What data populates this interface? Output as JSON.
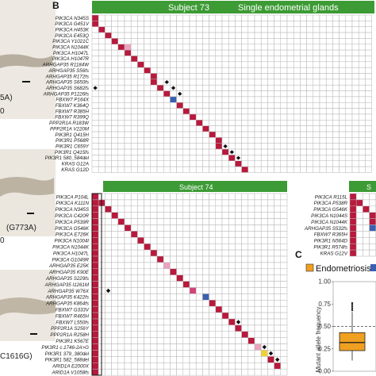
{
  "panel_b": {
    "letter": "B",
    "subject73": {
      "header_left": "Subject 73",
      "header_right": "Single endometrial glands",
      "genes": [
        "PIK3CA N345S",
        "PIK3CA G451V",
        "PIK3CA H453K",
        "PIK3CA E453Q",
        "PIK3CA Y1021C",
        "PIK3CA N1044K",
        "PIK3CA H1047L",
        "PIK3CA H1047R",
        "ARHGAP35 R1184W",
        "ARHGAP35 S56fs",
        "ARHGAP35 R172fs",
        "ARHGAP35 S650fs",
        "ARHGAP35 S682fs",
        "ARHGAP35 P1226fs",
        "FBXW7 P164X",
        "FBXW7 K364Q",
        "FBXW7 R385H",
        "FBXW7 R399Q",
        "PPP2R1A R183W",
        "PPP2R1A V220M",
        "PIK3R1 Q415H",
        "PIK3R1 P568R",
        "PIK3R1 C659Y",
        "PIK3R1 Q415fs",
        "PIK3R1 580_584del",
        "KRAS G12A",
        "KRAS G12D"
      ]
    },
    "subject74": {
      "header": "Subject 74",
      "genes": [
        "PIK3CA P104L",
        "PIK3CA K111N",
        "PIK3CA N345S",
        "PIK3CA C420R",
        "PIK3CA P539R",
        "PIK3CA G546K",
        "PIK3CA E726K",
        "PIK3CA N1004I",
        "PIK3CA N1044K",
        "PIK3CA H1047L",
        "PIK3CA G1049R",
        "ARHGAP35 E25K",
        "ARHGAP35 K90E",
        "ARHGAP35 S229fs",
        "ARHGAP35 I1261M",
        "ARHGAP35 W76X",
        "ARHGAP35 K422fs",
        "ARHGAP35 K864fs",
        "FBXW7 G333V",
        "FBXW7 R465H",
        "FBXW7 L550fs",
        "PPP2R1A S256Y",
        "PPP2R1A R258H",
        "PIK3R1 K567E",
        "PIK3R1 c.1746-2A>G",
        "PIK3R1 379_380del",
        "PIK3R1 582_588del",
        "ARID1A E2000X",
        "ARID1A V1058fs"
      ]
    },
    "subject_third": {
      "header": "S",
      "genes": [
        "PIK3CA R115L",
        "PIK3CA P538R",
        "PIK3CA G546K",
        "PIK3CA N1044S",
        "PIK3CA N1044K",
        "ARHGAP35 S532fs",
        "FBXW7 R365H",
        "PIK3R1 N564D",
        "PIK3R1 R574fs",
        "KRAS G12V"
      ]
    }
  },
  "panel_a": {
    "labels": [
      "5A)",
      "0",
      "(G773A)",
      "0",
      "C1616G)"
    ]
  },
  "panel_c": {
    "letter": "C",
    "legend": [
      "Endometriosis"
    ],
    "ylabel": "Mutant allele frequency",
    "chart_data": {
      "type": "box",
      "categories": [
        "Endometriosis"
      ],
      "ylim": [
        0,
        1.0
      ],
      "yticks": [
        "0.00",
        "0.25",
        "0.50",
        "0.75",
        "1.00"
      ],
      "reference_line": 0.5,
      "boxes": [
        {
          "name": "Endometriosis",
          "min": 0.12,
          "q1": 0.23,
          "median": 0.32,
          "q3": 0.43,
          "max": 0.66
        }
      ]
    }
  },
  "colors": {
    "header_green": "#3d9b35",
    "cell_dark": "#b8193c",
    "cell_mid": "#d0457a",
    "cell_light": "#eca1bf",
    "cell_blue": "#3a5fb0",
    "cell_yellow": "#f1d132",
    "box_orange": "#f0a020"
  }
}
